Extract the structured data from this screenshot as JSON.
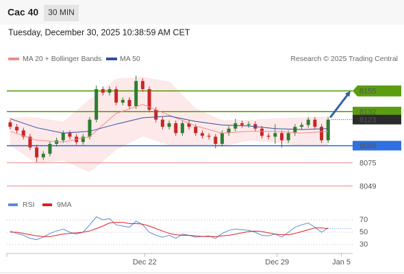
{
  "header": {
    "title": "Cac 40",
    "timeframe": "30 MIN",
    "timestamp": "Tuesday, December 30, 2025 10:38:59 AM CET"
  },
  "chart_data": [
    {
      "type": "candlestick",
      "credit": "Research © 2025 Trading Central",
      "x": [
        0,
        1,
        2,
        3,
        4,
        5,
        6,
        7,
        8,
        9,
        10,
        11,
        12,
        13,
        14,
        15,
        16,
        17,
        18,
        19,
        20,
        21,
        22,
        23,
        24,
        25,
        26,
        27,
        28,
        29,
        30,
        31,
        32,
        33,
        34,
        35,
        36,
        37,
        38,
        39,
        40,
        41,
        42,
        43,
        44,
        45,
        46,
        47,
        48
      ],
      "open": [
        8120,
        8115,
        8111,
        8104,
        8092,
        8081,
        8085,
        8096,
        8100,
        8108,
        8104,
        8098,
        8104,
        8123,
        8157,
        8153,
        8157,
        8142,
        8145,
        8138,
        8166,
        8157,
        8134,
        8123,
        8115,
        8119,
        8108,
        8119,
        8115,
        8108,
        8105,
        8104,
        8096,
        8108,
        8113,
        8119,
        8117,
        8118,
        8113,
        8105,
        8104,
        8108,
        8100,
        8108,
        8115,
        8117,
        8123,
        8115,
        8100
      ],
      "high": [
        8123,
        8118,
        8114,
        8107,
        8095,
        8088,
        8099,
        8103,
        8111,
        8111,
        8107,
        8107,
        8126,
        8161,
        8160,
        8160,
        8160,
        8148,
        8148,
        8172,
        8169,
        8160,
        8137,
        8126,
        8122,
        8122,
        8122,
        8122,
        8118,
        8111,
        8108,
        8107,
        8111,
        8116,
        8124,
        8122,
        8121,
        8121,
        8116,
        8108,
        8118,
        8111,
        8111,
        8118,
        8120,
        8126,
        8126,
        8118,
        8126
      ],
      "low": [
        8112,
        8108,
        8101,
        8089,
        8076,
        8078,
        8082,
        8093,
        8097,
        8101,
        8095,
        8095,
        8101,
        8120,
        8150,
        8150,
        8139,
        8139,
        8135,
        8135,
        8154,
        8131,
        8120,
        8112,
        8112,
        8105,
        8105,
        8112,
        8105,
        8102,
        8101,
        8091,
        8093,
        8105,
        8110,
        8114,
        8114,
        8110,
        8102,
        8101,
        8096,
        8092,
        8097,
        8105,
        8112,
        8114,
        8112,
        8097,
        8097
      ],
      "close": [
        8115,
        8111,
        8104,
        8092,
        8081,
        8085,
        8096,
        8100,
        8108,
        8104,
        8098,
        8104,
        8123,
        8157,
        8153,
        8157,
        8142,
        8145,
        8138,
        8166,
        8157,
        8134,
        8123,
        8115,
        8119,
        8108,
        8119,
        8115,
        8108,
        8105,
        8104,
        8096,
        8108,
        8113,
        8119,
        8117,
        8118,
        8113,
        8105,
        8104,
        8108,
        8100,
        8108,
        8115,
        8117,
        8123,
        8115,
        8100,
        8123
      ],
      "up_color": "#2e7d32",
      "down_color": "#c62828",
      "series": [
        {
          "name": "MA 20 + Bollinger Bands",
          "color": "#f28b8b",
          "band_color": "#fde3e3",
          "x": [
            0,
            4,
            8,
            12,
            16,
            20,
            24,
            28,
            32,
            36,
            40,
            44,
            48
          ],
          "values": [
            8110,
            8100,
            8098,
            8104,
            8130,
            8140,
            8128,
            8116,
            8108,
            8110,
            8110,
            8108,
            8110
          ],
          "upper": [
            8125,
            8125,
            8120,
            8145,
            8168,
            8170,
            8165,
            8135,
            8122,
            8122,
            8124,
            8125,
            8126
          ],
          "lower": [
            8095,
            8075,
            8078,
            8065,
            8090,
            8105,
            8095,
            8095,
            8094,
            8100,
            8098,
            8094,
            8095
          ]
        },
        {
          "name": "MA 50",
          "color": "#2b4f9e",
          "x": [
            0,
            4,
            8,
            12,
            16,
            20,
            24,
            28,
            32,
            36,
            40,
            44,
            48
          ],
          "values": [
            8124,
            8114,
            8108,
            8110,
            8118,
            8125,
            8127,
            8121,
            8117,
            8116,
            8113,
            8112,
            8113
          ]
        }
      ],
      "levels": [
        {
          "value": 8155,
          "color": "#5a9e0f",
          "line": "solid",
          "label_style": "arrow-box"
        },
        {
          "value": 8132,
          "color": "#5a9e0f",
          "line": "solid",
          "label_style": "box"
        },
        {
          "value": 8123,
          "color": "#2b2b2b",
          "line": "dotted",
          "label_style": "box"
        },
        {
          "value": 8094,
          "color": "#2f6fe0",
          "line": "solid",
          "label_style": "box"
        },
        {
          "value": 8075,
          "color": "#e05555",
          "line": "thin",
          "label_style": "text"
        },
        {
          "value": 8049,
          "color": "#e05555",
          "line": "thin",
          "label_style": "text"
        }
      ],
      "forecast_arrow_color": "#2f5fa8",
      "xlim": [
        -0.3,
        51.7
      ],
      "ylim": [
        8035,
        8183
      ]
    },
    {
      "type": "line",
      "x": [
        0,
        1,
        2,
        3,
        4,
        5,
        6,
        7,
        8,
        9,
        10,
        11,
        12,
        13,
        14,
        15,
        16,
        17,
        18,
        19,
        20,
        21,
        22,
        23,
        24,
        25,
        26,
        27,
        28,
        29,
        30,
        31,
        32,
        33,
        34,
        35,
        36,
        37,
        38,
        39,
        40,
        41,
        42,
        43,
        44,
        45,
        46,
        47,
        48
      ],
      "series": [
        {
          "name": "RSI",
          "color": "#5b8ad6",
          "values": [
            52,
            48,
            45,
            40,
            38,
            42,
            48,
            52,
            55,
            50,
            47,
            50,
            62,
            75,
            70,
            72,
            62,
            60,
            58,
            68,
            62,
            50,
            45,
            42,
            45,
            40,
            47,
            45,
            42,
            43,
            44,
            40,
            48,
            53,
            55,
            54,
            53,
            50,
            45,
            44,
            47,
            42,
            50,
            58,
            62,
            65,
            58,
            50,
            57
          ]
        },
        {
          "name": "9MA",
          "color": "#e01e1e",
          "values": [
            50,
            50,
            48,
            46,
            44,
            43,
            43,
            45,
            47,
            48,
            49,
            50,
            52,
            56,
            60,
            65,
            66,
            66,
            64,
            64,
            63,
            60,
            56,
            52,
            48,
            46,
            45,
            45,
            44,
            43,
            43,
            43,
            44,
            45,
            47,
            49,
            51,
            52,
            51,
            49,
            47,
            46,
            46,
            48,
            51,
            54,
            57,
            57,
            56
          ]
        }
      ],
      "xlim": [
        -0.3,
        51.7
      ],
      "ylim": [
        20,
        80
      ],
      "yticks": [
        30,
        50,
        70
      ],
      "xticks": [
        {
          "value": 20.3,
          "label": "Dec 22"
        },
        {
          "value": 40.3,
          "label": "Dec 29"
        },
        {
          "value": 50,
          "label": "Jan 5"
        }
      ],
      "grid": true
    }
  ]
}
